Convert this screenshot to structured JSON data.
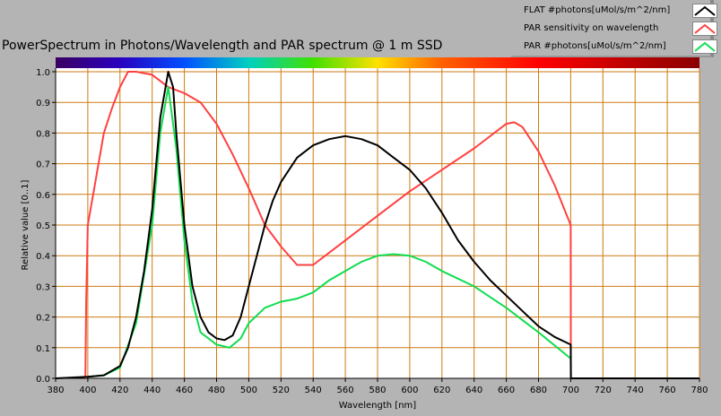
{
  "chart_data": {
    "type": "line",
    "title": "PowerSpectrum in Photons/Wavelength and PAR spectrum @ 1 m SSD",
    "xlabel": "Wavelength [nm]",
    "ylabel": "Relative value [0..1]",
    "xlim": [
      380,
      780
    ],
    "ylim": [
      0,
      1
    ],
    "xticks": [
      380,
      400,
      420,
      440,
      460,
      480,
      500,
      520,
      540,
      560,
      580,
      600,
      620,
      640,
      660,
      680,
      700,
      720,
      740,
      760,
      780
    ],
    "yticks": [
      "0.0",
      "0.1",
      "0.2",
      "0.3",
      "0.4",
      "0.5",
      "0.6",
      "0.7",
      "0.8",
      "0.9",
      "1.0"
    ],
    "grid": true,
    "legend_position": "top-right",
    "series": [
      {
        "name": "FLAT #photons[uMol/s/m^2/nm]",
        "color": "#000000",
        "x": [
          380,
          400,
          410,
          420,
          425,
          430,
          435,
          440,
          445,
          450,
          453,
          455,
          460,
          465,
          470,
          475,
          480,
          485,
          490,
          495,
          500,
          505,
          510,
          515,
          520,
          530,
          540,
          550,
          560,
          570,
          580,
          590,
          600,
          610,
          620,
          630,
          640,
          650,
          660,
          670,
          680,
          690,
          700,
          700.1,
          780
        ],
        "y": [
          0,
          0.005,
          0.01,
          0.04,
          0.1,
          0.2,
          0.35,
          0.55,
          0.85,
          1.0,
          0.95,
          0.8,
          0.5,
          0.3,
          0.2,
          0.15,
          0.13,
          0.125,
          0.14,
          0.2,
          0.3,
          0.4,
          0.5,
          0.58,
          0.64,
          0.72,
          0.76,
          0.78,
          0.79,
          0.78,
          0.76,
          0.72,
          0.68,
          0.62,
          0.54,
          0.45,
          0.38,
          0.32,
          0.27,
          0.22,
          0.17,
          0.135,
          0.11,
          0,
          0
        ]
      },
      {
        "name": "PAR sensitivity on wavelength",
        "color": "#ff4040",
        "x": [
          398.5,
          399,
          400,
          405,
          410,
          415,
          420,
          425,
          430,
          440,
          450,
          460,
          470,
          480,
          490,
          500,
          510,
          520,
          530,
          540,
          550,
          560,
          580,
          600,
          620,
          640,
          660,
          665,
          670,
          680,
          690,
          700,
          700.1
        ],
        "y": [
          0,
          0.25,
          0.5,
          0.65,
          0.8,
          0.88,
          0.95,
          1.0,
          1.0,
          0.99,
          0.95,
          0.93,
          0.9,
          0.83,
          0.73,
          0.62,
          0.5,
          0.43,
          0.37,
          0.37,
          0.41,
          0.45,
          0.53,
          0.61,
          0.68,
          0.75,
          0.83,
          0.835,
          0.82,
          0.74,
          0.63,
          0.5,
          0
        ]
      },
      {
        "name": "PAR #photons[uMol/s/m^2/nm]",
        "color": "#10dd50",
        "x": [
          400,
          410,
          420,
          430,
          440,
          445,
          450,
          455,
          460,
          465,
          470,
          480,
          488,
          495,
          500,
          510,
          520,
          530,
          540,
          550,
          560,
          570,
          580,
          590,
          600,
          610,
          620,
          640,
          660,
          680,
          700,
          700.1
        ],
        "y": [
          0.005,
          0.01,
          0.035,
          0.18,
          0.5,
          0.8,
          0.95,
          0.75,
          0.45,
          0.25,
          0.15,
          0.11,
          0.1,
          0.13,
          0.18,
          0.23,
          0.25,
          0.26,
          0.28,
          0.32,
          0.35,
          0.38,
          0.4,
          0.405,
          0.4,
          0.38,
          0.35,
          0.3,
          0.23,
          0.15,
          0.065,
          0
        ]
      }
    ]
  }
}
